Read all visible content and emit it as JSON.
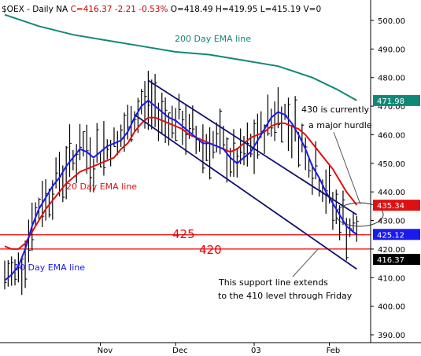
{
  "header": {
    "symbol": "$OEX",
    "period": "Daily",
    "na": "NA",
    "close": "C=416.37",
    "change": "-2.21",
    "change_pct": "-0.53%",
    "open": "O=418.49",
    "high": "H=419.95",
    "low": "L=415.19",
    "volume": "V=0"
  },
  "colors": {
    "ema10": "#1a1aee",
    "ema20": "#dd1111",
    "ema200": "#118877",
    "channel": "#101070",
    "hline": "#ee0000",
    "bars": "#000000",
    "panel_bg": "#ffffff"
  },
  "annotations": {
    "ema200": "200 Day EMA line",
    "ema20": "20 Day EMA line",
    "ema10": "10 Day EMA line",
    "hurdle_1": "430 is currently",
    "hurdle_2": "a major hurdle",
    "support_1": "This support line extends",
    "support_2": "to the 410 level through Friday",
    "level_425": "425",
    "level_420": "420"
  },
  "chart_data": {
    "type": "line",
    "title": "$OEX - Daily",
    "xlabel": "",
    "ylabel": "",
    "ylim": [
      385,
      505
    ],
    "y_ticks": [
      390,
      400,
      410,
      420,
      430,
      440,
      450,
      460,
      470,
      480,
      490,
      500
    ],
    "y_tick_labels": [
      "390.00",
      "400.00",
      "410.00",
      "420.00",
      "430.00",
      "440.00",
      "450.00",
      "460.00",
      "470.00",
      "480.00",
      "490.00",
      "500.00"
    ],
    "x_labels": [
      "Nov",
      "Dec",
      "03",
      "Feb"
    ],
    "x_label_days": [
      28,
      50,
      73,
      95
    ],
    "n_days": 105,
    "horizontal_levels": [
      425,
      420
    ],
    "badges": [
      {
        "text": "471.98",
        "value": 471.98,
        "color": "#118877"
      },
      {
        "text": "435.34",
        "value": 435.34,
        "color": "#dd1111"
      },
      {
        "text": "425.12",
        "value": 425.12,
        "color": "#1a1aee"
      },
      {
        "text": "416.37",
        "value": 416.37,
        "color": "#000000"
      }
    ],
    "channel": {
      "upper": {
        "x": [
          42,
          103
        ],
        "y": [
          479,
          432
        ]
      },
      "lower": {
        "x": [
          38,
          103
        ],
        "y": [
          467,
          413
        ]
      }
    },
    "series": [
      {
        "name": "200 Day EMA",
        "x": [
          0,
          10,
          20,
          30,
          40,
          50,
          60,
          70,
          80,
          90,
          97,
          103
        ],
        "values": [
          502,
          498,
          495,
          493,
          491,
          489,
          488,
          486,
          484,
          480,
          476,
          472
        ]
      },
      {
        "name": "20 Day EMA",
        "x": [
          0,
          2,
          4,
          6,
          8,
          10,
          12,
          14,
          16,
          18,
          20,
          22,
          24,
          26,
          28,
          30,
          32,
          34,
          36,
          38,
          40,
          42,
          44,
          46,
          48,
          50,
          52,
          54,
          56,
          58,
          60,
          62,
          64,
          66,
          68,
          70,
          72,
          74,
          76,
          78,
          80,
          82,
          84,
          86,
          88,
          90,
          92,
          94,
          96,
          98,
          100,
          102,
          103
        ],
        "values": [
          421,
          420,
          420,
          422,
          426,
          430,
          434,
          437,
          440,
          443,
          445,
          447,
          448,
          449,
          450,
          451,
          452,
          455,
          457,
          461,
          464,
          466,
          466,
          465,
          464,
          463,
          462,
          460,
          459,
          458,
          457,
          456,
          455,
          454,
          455,
          457,
          459,
          460,
          461,
          463,
          464,
          464,
          463,
          462,
          460,
          457,
          454,
          451,
          448,
          444,
          440,
          437,
          435.34
        ]
      },
      {
        "name": "10 Day EMA",
        "x": [
          0,
          2,
          4,
          6,
          8,
          10,
          12,
          14,
          16,
          18,
          20,
          22,
          24,
          26,
          28,
          30,
          32,
          34,
          36,
          38,
          40,
          42,
          44,
          46,
          48,
          50,
          52,
          54,
          56,
          58,
          60,
          62,
          64,
          66,
          68,
          70,
          72,
          74,
          76,
          78,
          80,
          82,
          84,
          86,
          88,
          90,
          92,
          94,
          96,
          98,
          100,
          102,
          103
        ],
        "values": [
          409,
          411,
          414,
          420,
          428,
          434,
          438,
          442,
          445,
          449,
          452,
          455,
          454,
          452,
          454,
          456,
          457,
          458,
          461,
          466,
          470,
          472,
          470,
          468,
          466,
          465,
          463,
          461,
          459,
          457,
          457,
          456,
          455,
          452,
          450,
          452,
          454,
          458,
          462,
          466,
          468,
          467,
          464,
          460,
          455,
          449,
          445,
          440,
          436,
          432,
          428,
          426,
          425.12
        ]
      }
    ]
  }
}
